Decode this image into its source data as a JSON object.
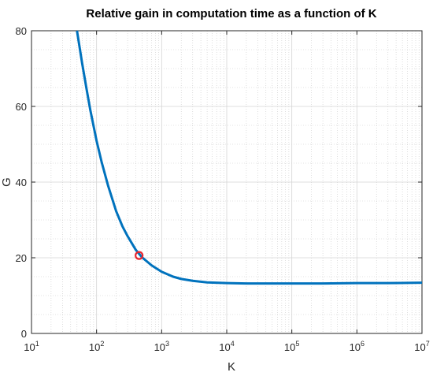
{
  "chart_data": {
    "type": "line",
    "title": "Relative gain in computation time as a function of K",
    "xlabel": "K",
    "ylabel": "G",
    "xscale": "log",
    "xlim": [
      10,
      10000000
    ],
    "ylim": [
      0,
      80
    ],
    "grid": true,
    "minor_grid": true,
    "x_ticks": [
      {
        "base": "10",
        "exp": "1",
        "value": 10
      },
      {
        "base": "10",
        "exp": "2",
        "value": 100
      },
      {
        "base": "10",
        "exp": "3",
        "value": 1000
      },
      {
        "base": "10",
        "exp": "4",
        "value": 10000
      },
      {
        "base": "10",
        "exp": "5",
        "value": 100000
      },
      {
        "base": "10",
        "exp": "6",
        "value": 1000000
      },
      {
        "base": "10",
        "exp": "7",
        "value": 10000000
      }
    ],
    "y_ticks": [
      "0",
      "20",
      "40",
      "60",
      "80"
    ],
    "y_tick_values": [
      0,
      20,
      40,
      60,
      80
    ],
    "series": [
      {
        "color": "#0072bd",
        "x": [
          50,
          60,
          70,
          80,
          100,
          120,
          150,
          200,
          250,
          300,
          400,
          500,
          700,
          1000,
          1500,
          2000,
          3000,
          5000,
          10000,
          20000,
          50000,
          100000,
          300000,
          1000000,
          3000000,
          10000000
        ],
        "y": [
          80,
          71.4,
          64.7,
          59.1,
          50.9,
          45.2,
          39.1,
          32.3,
          28.3,
          25.7,
          22.1,
          20.1,
          18.0,
          16.3,
          15.0,
          14.4,
          13.9,
          13.5,
          13.3,
          13.2,
          13.2,
          13.2,
          13.2,
          13.3,
          13.3,
          13.4
        ]
      }
    ],
    "highlight_point": {
      "x": 450,
      "y": 20.6,
      "color": "#e8262e"
    }
  }
}
